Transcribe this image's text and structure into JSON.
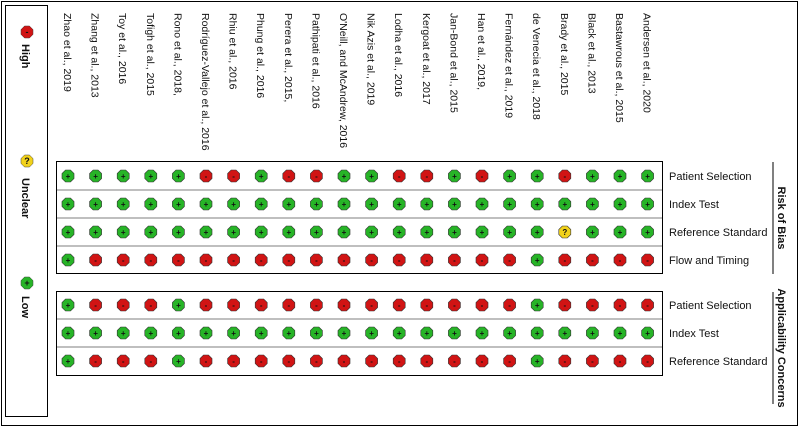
{
  "legend": {
    "items": [
      {
        "symbol": "-",
        "label": "High",
        "color": "#d11414"
      },
      {
        "symbol": "?",
        "label": "Unclear",
        "color": "#f2d21b"
      },
      {
        "symbol": "+",
        "label": "Low",
        "color": "#27b427"
      }
    ]
  },
  "sections": {
    "risk_of_bias": "Risk of Bias",
    "applicability": "Applicability Concerns"
  },
  "chart_data": {
    "type": "table",
    "codes": {
      "L": "Low",
      "H": "High",
      "U": "Unclear"
    },
    "studies": [
      "Zhao et al., 2019",
      "Zhang et al., 2013",
      "Toy et al., 2016",
      "Tofigh et al., 2015",
      "Rono et al., 2018,",
      "Rodríguez-Vallejo et al., 2016",
      "Rhiu et al., 2016",
      "Phung et al., 2016",
      "Perera et al., 2015,",
      "Pathipati et al., 2016",
      "O'Neill, and McAndrew, 2016",
      "Nik Azis et al., 2019",
      "Lodha et al., 2016",
      "Kergoat et al., 2017",
      "Jan-Bond et al., 2015",
      "Han et al., 2019,",
      "Fernández et al., 2019",
      "de Venecia et al., 2018",
      "Brady et al., 2015",
      "Black et al., 2013",
      "Bastawrous et al., 2015",
      "Andersen et al., 2020"
    ],
    "risk_of_bias": [
      {
        "domain": "Patient Selection",
        "values": [
          "L",
          "L",
          "L",
          "L",
          "L",
          "H",
          "H",
          "L",
          "H",
          "H",
          "L",
          "L",
          "H",
          "H",
          "L",
          "H",
          "L",
          "L",
          "H",
          "L",
          "L",
          "L"
        ]
      },
      {
        "domain": "Index Test",
        "values": [
          "L",
          "L",
          "L",
          "L",
          "L",
          "L",
          "L",
          "L",
          "L",
          "L",
          "L",
          "L",
          "L",
          "L",
          "L",
          "L",
          "L",
          "L",
          "L",
          "L",
          "L",
          "L"
        ]
      },
      {
        "domain": "Reference Standard",
        "values": [
          "L",
          "L",
          "L",
          "L",
          "L",
          "L",
          "L",
          "L",
          "L",
          "L",
          "L",
          "L",
          "L",
          "L",
          "L",
          "L",
          "L",
          "L",
          "U",
          "L",
          "L",
          "L"
        ]
      },
      {
        "domain": "Flow and Timing",
        "values": [
          "L",
          "H",
          "H",
          "H",
          "H",
          "H",
          "H",
          "H",
          "H",
          "H",
          "H",
          "H",
          "H",
          "H",
          "H",
          "H",
          "H",
          "L",
          "H",
          "H",
          "H",
          "H"
        ]
      }
    ],
    "applicability": [
      {
        "domain": "Patient Selection",
        "values": [
          "L",
          "H",
          "H",
          "H",
          "L",
          "H",
          "H",
          "H",
          "H",
          "H",
          "H",
          "H",
          "H",
          "H",
          "H",
          "H",
          "H",
          "L",
          "H",
          "H",
          "H",
          "H"
        ]
      },
      {
        "domain": "Index Test",
        "values": [
          "L",
          "L",
          "L",
          "L",
          "L",
          "L",
          "L",
          "L",
          "L",
          "L",
          "L",
          "L",
          "L",
          "L",
          "L",
          "L",
          "L",
          "L",
          "L",
          "L",
          "L",
          "L"
        ]
      },
      {
        "domain": "Reference Standard",
        "values": [
          "L",
          "H",
          "H",
          "H",
          "L",
          "H",
          "H",
          "H",
          "H",
          "H",
          "H",
          "H",
          "H",
          "H",
          "H",
          "H",
          "H",
          "L",
          "H",
          "H",
          "H",
          "H"
        ]
      }
    ]
  }
}
